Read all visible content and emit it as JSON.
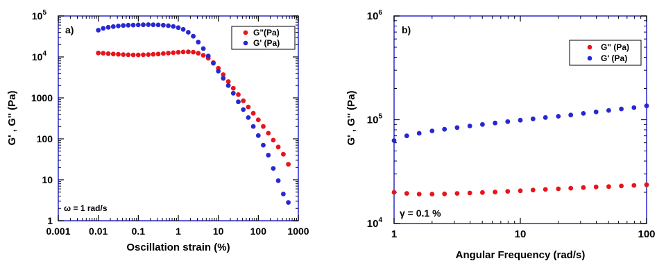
{
  "chart_data": [
    {
      "type": "scatter",
      "panel_label": "a)",
      "xscale": "log",
      "yscale": "log",
      "xlim": [
        0.001,
        1000
      ],
      "ylim": [
        1,
        100000
      ],
      "xlabel": "Oscillation strain (%)",
      "ylabel": "G' , G'' (Pa)",
      "xticks": [
        {
          "value": 0.001,
          "label": "0.001"
        },
        {
          "value": 0.01,
          "label": "0.01"
        },
        {
          "value": 0.1,
          "label": "0.1"
        },
        {
          "value": 1,
          "label": "1"
        },
        {
          "value": 10,
          "label": "10"
        },
        {
          "value": 100,
          "label": "100"
        },
        {
          "value": 1000,
          "label": "1000"
        }
      ],
      "yticks": [
        {
          "value": 1,
          "label": "1",
          "sup": ""
        },
        {
          "value": 10,
          "label": "10",
          "sup": ""
        },
        {
          "value": 100,
          "label": "100",
          "sup": ""
        },
        {
          "value": 1000,
          "label": "1000",
          "sup": ""
        },
        {
          "value": 10000,
          "label": "10",
          "sup": "4"
        },
        {
          "value": 100000,
          "label": "10",
          "sup": "5"
        }
      ],
      "annotation": "ω = 1 rad/s",
      "legend_position": "top-right",
      "series": [
        {
          "name": "G\"(Pa)",
          "color": "#e8141b",
          "x": [
            0.01,
            0.0133,
            0.0178,
            0.0237,
            0.0316,
            0.0422,
            0.0562,
            0.075,
            0.1,
            0.133,
            0.178,
            0.237,
            0.316,
            0.422,
            0.562,
            0.75,
            1,
            1.33,
            1.78,
            2.37,
            3.16,
            4.22,
            5.62,
            7.5,
            10,
            13.3,
            17.8,
            23.7,
            31.6,
            42.2,
            56.2,
            75,
            100,
            133,
            178,
            237,
            316,
            422,
            562
          ],
          "y": [
            12500,
            12300,
            12000,
            11800,
            11600,
            11400,
            11300,
            11200,
            11200,
            11300,
            11400,
            11600,
            11800,
            12100,
            12400,
            12700,
            13000,
            13200,
            13300,
            13100,
            12300,
            11000,
            9300,
            7300,
            5300,
            3700,
            2500,
            1720,
            1200,
            850,
            600,
            420,
            290,
            200,
            137,
            93,
            63,
            42,
            24
          ]
        },
        {
          "name": "G' (Pa)",
          "color": "#2828d2",
          "x": [
            0.01,
            0.0133,
            0.0178,
            0.0237,
            0.0316,
            0.0422,
            0.0562,
            0.075,
            0.1,
            0.133,
            0.178,
            0.237,
            0.316,
            0.422,
            0.562,
            0.75,
            1,
            1.33,
            1.78,
            2.37,
            3.16,
            4.22,
            5.62,
            7.5,
            10,
            13.3,
            17.8,
            23.7,
            31.6,
            42.2,
            56.2,
            75,
            100,
            133,
            178,
            237,
            316,
            422,
            562
          ],
          "y": [
            45000,
            50000,
            53000,
            55000,
            57000,
            58500,
            59500,
            60000,
            60500,
            61000,
            61500,
            61000,
            60500,
            59500,
            58000,
            55500,
            52000,
            47000,
            40000,
            32000,
            23000,
            16000,
            10500,
            7000,
            4500,
            3000,
            2000,
            1300,
            800,
            520,
            330,
            200,
            120,
            70,
            40,
            19,
            9.5,
            4.5,
            2.8
          ]
        }
      ]
    },
    {
      "type": "scatter",
      "panel_label": "b)",
      "xscale": "log",
      "yscale": "log",
      "xlim": [
        1,
        100
      ],
      "ylim": [
        10000,
        1000000
      ],
      "xlabel": "Angular Frequency (rad/s)",
      "ylabel": "G' , G'' (Pa)",
      "xticks": [
        {
          "value": 1,
          "label": "1"
        },
        {
          "value": 10,
          "label": "10"
        },
        {
          "value": 100,
          "label": "100"
        }
      ],
      "yticks": [
        {
          "value": 10000,
          "label": "10",
          "sup": "4"
        },
        {
          "value": 100000,
          "label": "10",
          "sup": "5"
        },
        {
          "value": 1000000,
          "label": "10",
          "sup": "6"
        }
      ],
      "annotation": "γ = 0.1 %",
      "legend_position": "top-right",
      "series": [
        {
          "name": "G\" (Pa)",
          "color": "#e8141b",
          "x": [
            1,
            1.26,
            1.58,
            2,
            2.51,
            3.16,
            3.98,
            5.01,
            6.31,
            7.94,
            10,
            12.6,
            15.8,
            20,
            25.1,
            31.6,
            39.8,
            50.1,
            63.1,
            79.4,
            100
          ],
          "y": [
            20000,
            19500,
            19200,
            19200,
            19300,
            19500,
            19700,
            19900,
            20100,
            20400,
            20700,
            21000,
            21300,
            21600,
            21900,
            22200,
            22500,
            22700,
            23000,
            23300,
            23600
          ]
        },
        {
          "name": "G' (Pa)",
          "color": "#2828d2",
          "x": [
            1,
            1.26,
            1.58,
            2,
            2.51,
            3.16,
            3.98,
            5.01,
            6.31,
            7.94,
            10,
            12.6,
            15.8,
            20,
            25.1,
            31.6,
            39.8,
            50.1,
            63.1,
            79.4,
            100
          ],
          "y": [
            63000,
            70000,
            74000,
            78000,
            81000,
            84000,
            87000,
            90000,
            93000,
            96000,
            99000,
            102000,
            105000,
            108000,
            111000,
            115000,
            119000,
            123000,
            127000,
            131000,
            136000
          ]
        }
      ]
    }
  ]
}
